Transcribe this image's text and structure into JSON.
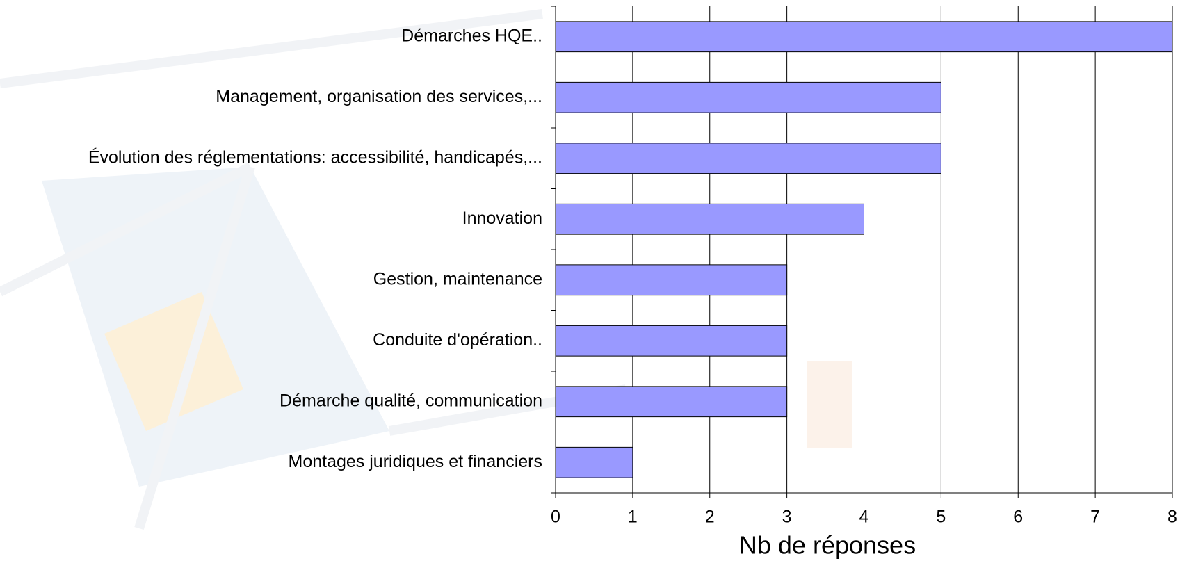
{
  "chart_data": {
    "type": "bar",
    "orientation": "horizontal",
    "xlabel": "Nb de réponses",
    "categories": [
      "Démarches HQE..",
      "Management, organisation des services,...",
      "Évolution des réglementations: accessibilité, handicapés,...",
      "Innovation",
      "Gestion, maintenance",
      "Conduite d'opération..",
      "Démarche qualité, communication",
      "Montages juridiques et financiers"
    ],
    "values": [
      8,
      5,
      5,
      4,
      3,
      3,
      3,
      1
    ],
    "color": "#9999ff",
    "xlim": [
      0,
      8
    ],
    "xticks": [
      0,
      1,
      2,
      3,
      4,
      5,
      6,
      7,
      8
    ],
    "grid": true
  }
}
